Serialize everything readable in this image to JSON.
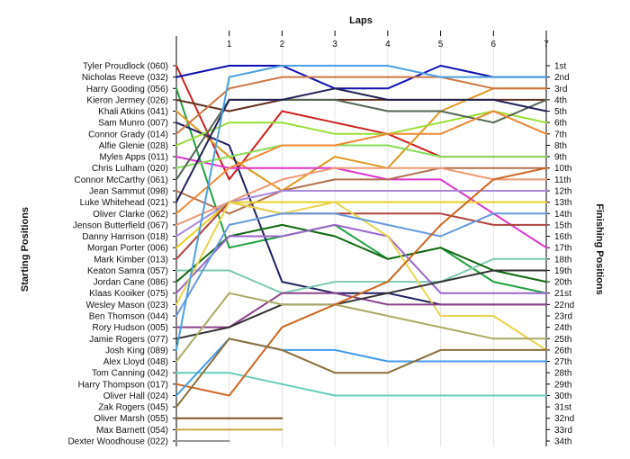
{
  "chart_data": {
    "type": "line",
    "title": "",
    "xlabel": "Laps",
    "ylabel_left": "Starting Positions",
    "ylabel_right": "Finishing Positions",
    "x_ticks": [
      "1",
      "2",
      "3",
      "4",
      "5",
      "6",
      "7"
    ],
    "y_reversed": true,
    "ylim": [
      1,
      34
    ],
    "grid": true,
    "starting_labels": [
      "Tyler Proudlock (060)",
      "Nicholas Reeve (032)",
      "Harry Gooding (056)",
      "Kieron Jermey (026)",
      "Khali Atkins (041)",
      "Sam Munro (007)",
      "Connor Grady (014)",
      "Alfie Glenie (028)",
      "Myles Apps (011)",
      "Chris Lulham (020)",
      "Connor McCarthy (061)",
      "Jean Sammut (098)",
      "Luke Whitehead (021)",
      "Oliver Clarke (062)",
      "Jenson Butterfield (067)",
      "Danny Harrison (018)",
      "Morgan Porter (006)",
      "Mark Kimber (013)",
      "Keaton Samra (057)",
      "Jordan Cane (086)",
      "Klaas Kooiker (075)",
      "Wesley Mason (023)",
      "Ben Thomson (044)",
      "Rory Hudson (005)",
      "Jamie Rogers (077)",
      "Josh King (089)",
      "Alex Lloyd (048)",
      "Tom Canning (042)",
      "Harry Thompson (017)",
      "Oliver Hall (024)",
      "Zak Rogers (045)",
      "Oliver Marsh (055)",
      "Max Barnett (054)",
      "Dexter Woodhouse (022)"
    ],
    "finishing_labels": [
      "1st",
      "2nd",
      "3rd",
      "4th",
      "5th",
      "6th",
      "7th",
      "8th",
      "9th",
      "10th",
      "11th",
      "12th",
      "13th",
      "14th",
      "15th",
      "16th",
      "17th",
      "18th",
      "19th",
      "20th",
      "21st",
      "22nd",
      "23rd",
      "24th",
      "25th",
      "26th",
      "27th",
      "28th",
      "29th",
      "30th",
      "31st",
      "32nd",
      "33rd",
      "34th"
    ],
    "series": [
      {
        "color": "#cc2020",
        "positions": [
          1,
          11,
          5,
          6,
          7,
          9,
          9,
          9
        ]
      },
      {
        "color": "#1010b0",
        "positions": [
          2,
          1,
          1,
          3,
          3,
          1,
          2,
          2
        ]
      },
      {
        "color": "#20a040",
        "positions": [
          3,
          17,
          16,
          15,
          18,
          17,
          20,
          21
        ]
      },
      {
        "color": "#603020",
        "positions": [
          4,
          5,
          4,
          4,
          4,
          4,
          4,
          4
        ]
      },
      {
        "color": "#dd9922",
        "positions": [
          5,
          9,
          12,
          9,
          10,
          5,
          3,
          3
        ]
      },
      {
        "color": "#202060",
        "positions": [
          6,
          8,
          20,
          21,
          21,
          22,
          22,
          22
        ]
      },
      {
        "color": "#cc7744",
        "positions": [
          7,
          3,
          2,
          2,
          2,
          2,
          3,
          3
        ]
      },
      {
        "color": "#99dd33",
        "positions": [
          8,
          6,
          6,
          7,
          7,
          6,
          5,
          6
        ]
      },
      {
        "color": "#dd33cc",
        "positions": [
          9,
          10,
          10,
          10,
          11,
          11,
          14,
          17
        ]
      },
      {
        "color": "#88dd55",
        "positions": [
          10,
          9,
          8,
          8,
          8,
          9,
          9,
          9
        ]
      },
      {
        "color": "#556655",
        "positions": [
          11,
          4,
          4,
          4,
          5,
          5,
          6,
          4
        ]
      },
      {
        "color": "#b07050",
        "positions": [
          12,
          14,
          12,
          11,
          11,
          10,
          10,
          10
        ]
      },
      {
        "color": "#222255",
        "positions": [
          13,
          4,
          4,
          3,
          4,
          4,
          4,
          5
        ]
      },
      {
        "color": "#ee8833",
        "positions": [
          14,
          10,
          8,
          8,
          7,
          7,
          5,
          7
        ]
      },
      {
        "color": "#ee9977",
        "positions": [
          15,
          13,
          11,
          10,
          10,
          10,
          11,
          11
        ]
      },
      {
        "color": "#aa88dd",
        "positions": [
          16,
          13,
          12,
          12,
          12,
          12,
          12,
          12
        ]
      },
      {
        "color": "#e8d020",
        "positions": [
          17,
          13,
          13,
          13,
          13,
          13,
          13,
          13
        ]
      },
      {
        "color": "#b04040",
        "positions": [
          18,
          13,
          14,
          14,
          14,
          14,
          15,
          15
        ]
      },
      {
        "color": "#7ec8b0",
        "positions": [
          19,
          19,
          21,
          20,
          20,
          20,
          18,
          18
        ]
      },
      {
        "color": "#116611",
        "positions": [
          20,
          16,
          15,
          16,
          18,
          17,
          19,
          20
        ]
      },
      {
        "color": "#9966cc",
        "positions": [
          21,
          16,
          16,
          15,
          16,
          21,
          21,
          21
        ]
      },
      {
        "color": "#e8d44d",
        "positions": [
          22,
          13,
          14,
          13,
          16,
          23,
          23,
          26
        ]
      },
      {
        "color": "#6699dd",
        "positions": [
          23,
          15,
          14,
          14,
          15,
          16,
          14,
          14
        ]
      },
      {
        "color": "#884488",
        "positions": [
          24,
          24,
          21,
          21,
          22,
          22,
          22,
          22
        ]
      },
      {
        "color": "#333333",
        "positions": [
          25,
          24,
          22,
          22,
          21,
          20,
          19,
          19
        ]
      },
      {
        "color": "#4aa0e0",
        "positions": [
          26,
          2,
          1,
          1,
          1,
          2,
          2,
          2
        ]
      },
      {
        "color": "#aaaa66",
        "positions": [
          27,
          21,
          22,
          22,
          23,
          24,
          25,
          25
        ]
      },
      {
        "color": "#66ccbb",
        "positions": [
          28,
          28,
          29,
          30,
          30,
          30,
          30,
          30
        ]
      },
      {
        "color": "#cc6622",
        "positions": [
          29,
          30,
          24,
          22,
          20,
          15,
          11,
          10
        ]
      },
      {
        "color": "#4499ee",
        "positions": [
          30,
          25,
          26,
          26,
          27,
          27,
          27,
          27
        ]
      },
      {
        "color": "#8b6f3a",
        "positions": [
          31,
          25,
          26,
          28,
          28,
          26,
          26,
          26
        ]
      },
      {
        "color": "#7a5522",
        "positions": [
          32,
          32,
          32
        ]
      },
      {
        "color": "#cca840",
        "positions": [
          33,
          33,
          33
        ]
      },
      {
        "color": "#999999",
        "positions": [
          34,
          34
        ]
      }
    ]
  }
}
